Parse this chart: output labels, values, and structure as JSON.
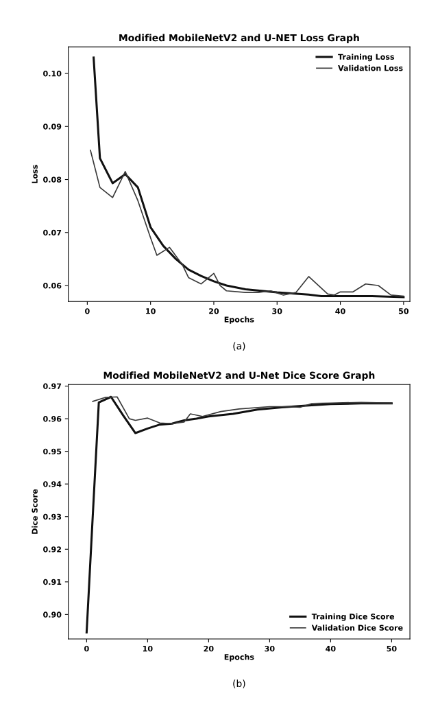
{
  "chart_data": [
    {
      "type": "line",
      "title": "Modified MobileNetV2 and U-NET Loss Graph",
      "xlabel": "Epochs",
      "ylabel": "Loss",
      "annotations": [
        "(a)"
      ],
      "series": [
        {
          "name": "Training Loss",
          "color": "#111111",
          "x": [
            1,
            2,
            4,
            6,
            8,
            10,
            12,
            14,
            16,
            18,
            20,
            22,
            25,
            30,
            35,
            37,
            40,
            45,
            50
          ],
          "values": [
            0.103,
            0.084,
            0.0793,
            0.081,
            0.0785,
            0.071,
            0.0675,
            0.065,
            0.063,
            0.0618,
            0.0608,
            0.06,
            0.0593,
            0.0587,
            0.0583,
            0.058,
            0.058,
            0.058,
            0.0578
          ]
        },
        {
          "name": "Validation Loss",
          "color": "#3a3a3a",
          "x": [
            0.5,
            2,
            4,
            6,
            8,
            10,
            11,
            13,
            15,
            16,
            18,
            20,
            21,
            22,
            25,
            27,
            29,
            31,
            33,
            35,
            38,
            39,
            40,
            42,
            44,
            46,
            48,
            50
          ],
          "values": [
            0.0855,
            0.0785,
            0.0766,
            0.0815,
            0.076,
            0.069,
            0.0657,
            0.0672,
            0.064,
            0.0615,
            0.0603,
            0.0623,
            0.06,
            0.059,
            0.0587,
            0.0587,
            0.059,
            0.0582,
            0.0587,
            0.0617,
            0.0584,
            0.0582,
            0.0588,
            0.0588,
            0.0603,
            0.06,
            0.0582,
            0.058
          ]
        }
      ],
      "xlim": [
        -3,
        51
      ],
      "xticks": [
        0,
        10,
        20,
        30,
        40,
        50
      ],
      "ylim": [
        0.057,
        0.105
      ],
      "yticks": [
        0.06,
        0.07,
        0.08,
        0.09,
        {
          "value": 0.1,
          "label": "0.10"
        }
      ],
      "grid": false,
      "legend": "top right"
    },
    {
      "type": "line",
      "title": "Modified MobileNetV2 and U-Net Dice Score Graph",
      "xlabel": "Epochs",
      "ylabel": "Dice Score",
      "annotations": [
        "(b)"
      ],
      "series": [
        {
          "name": "Training Dice Score",
          "color": "#111111",
          "x": [
            0,
            1,
            2,
            4,
            6,
            8,
            10,
            12,
            14,
            16,
            18,
            20,
            24,
            28,
            32,
            36,
            40,
            45,
            50
          ],
          "values": [
            0.8945,
            0.93,
            0.965,
            0.9667,
            0.961,
            0.9556,
            0.957,
            0.9582,
            0.9585,
            0.9595,
            0.96,
            0.9607,
            0.9615,
            0.9628,
            0.9635,
            0.964,
            0.9645,
            0.9647,
            0.9647
          ]
        },
        {
          "name": "Validation Dice Score",
          "color": "#3a3a3a",
          "x": [
            1,
            3,
            5,
            7,
            8,
            10,
            12,
            14,
            16,
            17,
            19,
            22,
            25,
            30,
            33,
            35,
            37,
            40,
            45,
            50
          ],
          "values": [
            0.9653,
            0.9665,
            0.9667,
            0.96,
            0.9595,
            0.9602,
            0.9587,
            0.9585,
            0.959,
            0.9615,
            0.9607,
            0.9622,
            0.963,
            0.9637,
            0.9637,
            0.9635,
            0.9647,
            0.9648,
            0.965,
            0.9648
          ]
        }
      ],
      "xlim": [
        -3,
        53
      ],
      "xticks": [
        0,
        10,
        20,
        30,
        40,
        50
      ],
      "ylim": [
        0.8925,
        0.9705
      ],
      "yticks": [
        {
          "value": 0.9,
          "label": "0.90"
        },
        0.91,
        0.92,
        0.93,
        0.94,
        0.95,
        0.96,
        0.97
      ],
      "grid": false,
      "legend": "bottom right"
    }
  ]
}
